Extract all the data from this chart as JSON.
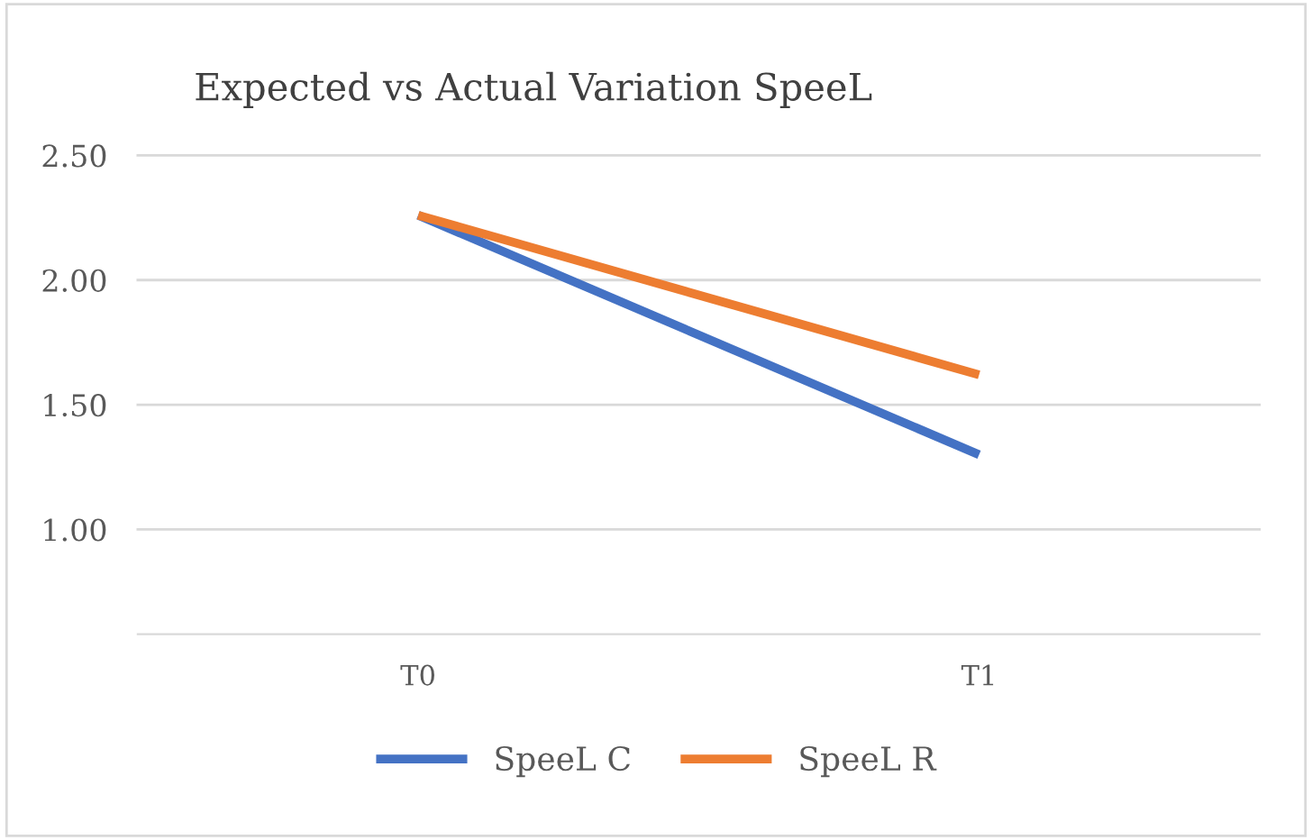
{
  "chart_data": {
    "type": "line",
    "title": "Expected vs Actual Variation SpeeL",
    "categories": [
      "T0",
      "T1"
    ],
    "series": [
      {
        "name": "SpeeL C",
        "color": "#4472c4",
        "values": [
          2.26,
          1.3
        ]
      },
      {
        "name": "SpeeL R",
        "color": "#ed7d31",
        "values": [
          2.26,
          1.62
        ]
      }
    ],
    "ylim": [
      0.58,
      2.5
    ],
    "yticks": [
      {
        "value": 2.5,
        "label": "2.50"
      },
      {
        "value": 2.0,
        "label": "2.00"
      },
      {
        "value": 1.5,
        "label": "1.50"
      },
      {
        "value": 1.0,
        "label": "1.00"
      }
    ],
    "grid": "y",
    "legend": "bottom",
    "marker": "none",
    "line_style": "solid"
  }
}
